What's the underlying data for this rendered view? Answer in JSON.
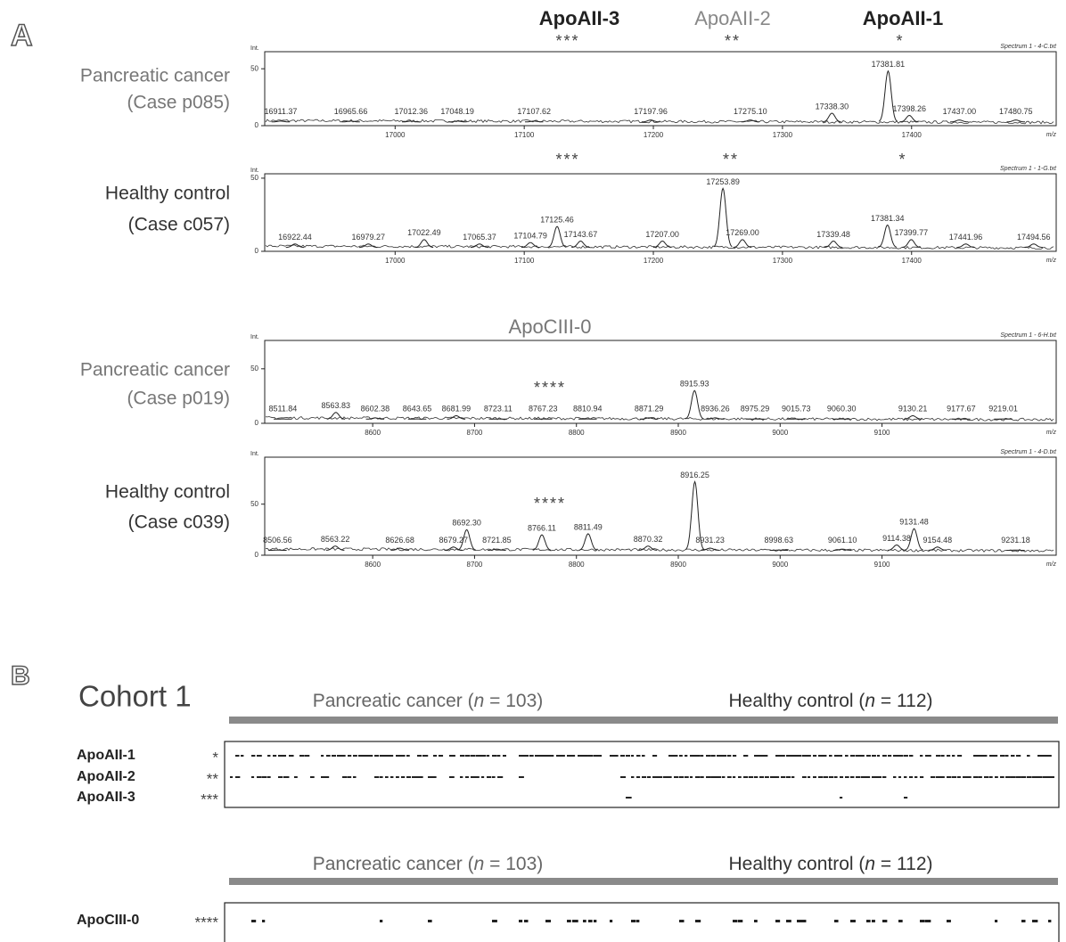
{
  "panel_a_label": "A",
  "chart_data": [
    {
      "type": "line",
      "title": "Spectrum 1 - 4-C.txt",
      "sample": [
        "Pancreatic cancer",
        "(Case p085)"
      ],
      "peak_names": [
        "ApoAII-3",
        "ApoAII-2",
        "ApoAII-1"
      ],
      "stars": [
        "***",
        "**",
        "*"
      ],
      "xlabel": "m/z",
      "ylabel": "Int.",
      "xlim": [
        16899,
        17512
      ],
      "xticks": [
        17000,
        17100,
        17200,
        17300,
        17400
      ],
      "ylim": [
        0,
        65
      ],
      "yticks": [
        0,
        50
      ],
      "peaks": [
        {
          "value": 16911.37,
          "label": "16911.37",
          "height": 4
        },
        {
          "value": 16965.66,
          "label": "16965.66",
          "height": 4
        },
        {
          "value": 17012.36,
          "label": "17012.36",
          "height": 4
        },
        {
          "value": 17048.19,
          "label": "17048.19",
          "height": 4
        },
        {
          "value": 17107.62,
          "label": "17107.62",
          "height": 4
        },
        {
          "value": 17197.96,
          "label": "17197.96",
          "height": 5
        },
        {
          "value": 17275.1,
          "label": "17275.10",
          "height": 5
        },
        {
          "value": 17338.3,
          "label": "17338.30",
          "height": 11
        },
        {
          "value": 17381.81,
          "label": "17381.81",
          "height": 48
        },
        {
          "value": 17398.26,
          "label": "17398.26",
          "height": 9
        },
        {
          "value": 17437,
          "label": "17437.00",
          "height": 5
        },
        {
          "value": 17480.75,
          "label": "17480.75",
          "height": 5
        }
      ]
    },
    {
      "type": "line",
      "title": "Spectrum 1 - 1-G.txt",
      "sample": [
        "Healthy control",
        "(Case c057)"
      ],
      "stars": [
        "***",
        "**",
        "*"
      ],
      "xlabel": "m/z",
      "ylabel": "Int.",
      "xlim": [
        16899,
        17512
      ],
      "xticks": [
        17000,
        17100,
        17200,
        17300,
        17400
      ],
      "ylim": [
        0,
        53
      ],
      "yticks": [
        0,
        50
      ],
      "peaks": [
        {
          "value": 16922.44,
          "label": "16922.44",
          "height": 5
        },
        {
          "value": 16979.27,
          "label": "16979.27",
          "height": 5
        },
        {
          "value": 17022.49,
          "label": "17022.49",
          "height": 8
        },
        {
          "value": 17065.37,
          "label": "17065.37",
          "height": 5
        },
        {
          "value": 17104.79,
          "label": "17104.79",
          "height": 6
        },
        {
          "value": 17125.46,
          "label": "17125.46",
          "height": 17
        },
        {
          "value": 17143.67,
          "label": "17143.67",
          "height": 7
        },
        {
          "value": 17207,
          "label": "17207.00",
          "height": 7
        },
        {
          "value": 17253.89,
          "label": "17253.89",
          "height": 43
        },
        {
          "value": 17269,
          "label": "17269.00",
          "height": 8
        },
        {
          "value": 17339.48,
          "label": "17339.48",
          "height": 7
        },
        {
          "value": 17381.34,
          "label": "17381.34",
          "height": 18
        },
        {
          "value": 17399.77,
          "label": "17399.77",
          "height": 8
        },
        {
          "value": 17441.96,
          "label": "17441.96",
          "height": 5
        },
        {
          "value": 17494.56,
          "label": "17494.56",
          "height": 5
        }
      ]
    },
    {
      "type": "line",
      "title": "Spectrum 1 - 6-H.txt",
      "sample": [
        "Pancreatic cancer",
        "(Case p019)"
      ],
      "peak_names": [
        "ApoCIII-0"
      ],
      "stars": [
        "****"
      ],
      "xlabel": "m/z",
      "ylabel": "Int.",
      "xlim": [
        8494,
        9271
      ],
      "xticks": [
        8600,
        8700,
        8800,
        8900,
        9000,
        9100
      ],
      "ylim": [
        0,
        76
      ],
      "yticks": [
        0,
        50
      ],
      "peaks": [
        {
          "value": 8511.84,
          "label": "8511.84",
          "height": 4
        },
        {
          "value": 8563.83,
          "label": "8563.83",
          "height": 10
        },
        {
          "value": 8602.38,
          "label": "8602.38",
          "height": 5
        },
        {
          "value": 8643.65,
          "label": "8643.65",
          "height": 4
        },
        {
          "value": 8681.99,
          "label": "8681.99",
          "height": 7
        },
        {
          "value": 8723.11,
          "label": "8723.11",
          "height": 4
        },
        {
          "value": 8767.23,
          "label": "8767.23",
          "height": 4
        },
        {
          "value": 8810.94,
          "label": "8810.94",
          "height": 4
        },
        {
          "value": 8871.29,
          "label": "8871.29",
          "height": 5
        },
        {
          "value": 8915.93,
          "label": "8915.93",
          "height": 30
        },
        {
          "value": 8936.26,
          "label": "8936.26",
          "height": 5
        },
        {
          "value": 8975.29,
          "label": "8975.29",
          "height": 4
        },
        {
          "value": 9015.73,
          "label": "9015.73",
          "height": 4
        },
        {
          "value": 9060.3,
          "label": "9060.30",
          "height": 4
        },
        {
          "value": 9130.21,
          "label": "9130.21",
          "height": 7
        },
        {
          "value": 9177.67,
          "label": "9177.67",
          "height": 4
        },
        {
          "value": 9219.01,
          "label": "9219.01",
          "height": 4
        }
      ]
    },
    {
      "type": "line",
      "title": "Spectrum 1 - 4-D.txt",
      "sample": [
        "Healthy control",
        "(Case c039)"
      ],
      "stars": [
        "****"
      ],
      "xlabel": "m/z",
      "ylabel": "Int.",
      "xlim": [
        8494,
        9271
      ],
      "xticks": [
        8600,
        8700,
        8800,
        8900,
        9000,
        9100
      ],
      "ylim": [
        0,
        96
      ],
      "yticks": [
        0,
        50
      ],
      "peaks": [
        {
          "value": 8506.56,
          "label": "8506.56",
          "height": 5
        },
        {
          "value": 8563.22,
          "label": "8563.22",
          "height": 9
        },
        {
          "value": 8626.68,
          "label": "8626.68",
          "height": 7
        },
        {
          "value": 8679.27,
          "label": "8679.27",
          "height": 8
        },
        {
          "value": 8692.3,
          "label": "8692.30",
          "height": 25
        },
        {
          "value": 8721.85,
          "label": "8721.85",
          "height": 6
        },
        {
          "value": 8766.11,
          "label": "8766.11",
          "height": 20
        },
        {
          "value": 8811.49,
          "label": "8811.49",
          "height": 21
        },
        {
          "value": 8870.32,
          "label": "8870.32",
          "height": 9
        },
        {
          "value": 8916.25,
          "label": "8916.25",
          "height": 72
        },
        {
          "value": 8931.23,
          "label": "8931.23",
          "height": 7
        },
        {
          "value": 8998.63,
          "label": "8998.63",
          "height": 5
        },
        {
          "value": 9061.1,
          "label": "9061.10",
          "height": 6
        },
        {
          "value": 9114.38,
          "label": "9114.38",
          "height": 10
        },
        {
          "value": 9131.48,
          "label": "9131.48",
          "height": 26
        },
        {
          "value": 9154.48,
          "label": "9154.48",
          "height": 8
        },
        {
          "value": 9231.18,
          "label": "9231.18",
          "height": 5
        }
      ]
    }
  ],
  "panel_b": {
    "label": "B",
    "cohort": "Cohort 1",
    "strips": [
      {
        "groups": [
          {
            "prefix": "Pancreatic cancer (",
            "italic": "n",
            "suffix": " = 103)"
          },
          {
            "prefix": "Healthy control (",
            "italic": "n",
            "suffix": " = 112)"
          }
        ],
        "rows": [
          {
            "name": "ApoAII-1",
            "stars": "*"
          },
          {
            "name": "ApoAII-2",
            "stars": "**"
          },
          {
            "name": "ApoAII-3",
            "stars": "***"
          }
        ]
      },
      {
        "groups": [
          {
            "prefix": "Pancreatic cancer (",
            "italic": "n",
            "suffix": " = 103)"
          },
          {
            "prefix": "Healthy control (",
            "italic": "n",
            "suffix": " = 112)"
          }
        ],
        "rows": [
          {
            "name": "ApoCIII-0",
            "stars": "****"
          }
        ]
      }
    ]
  }
}
